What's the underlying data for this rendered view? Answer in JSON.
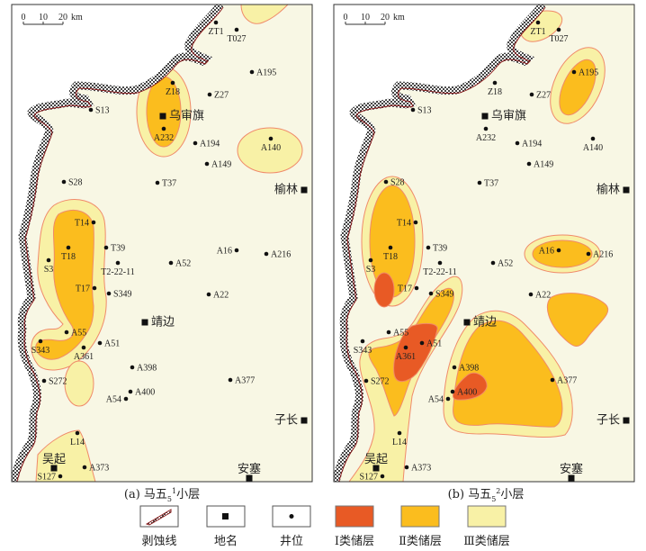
{
  "scale_bar": {
    "ticks": [
      "0",
      "10",
      "20"
    ],
    "unit": "km"
  },
  "colors": {
    "class_I": "#e85a25",
    "class_II": "#fbbd1e",
    "class_III": "#f8f1a6",
    "background": "#f8f7e4",
    "zone_outline": "#f08a6a",
    "erosion_line": "#8b1a1a"
  },
  "panels": [
    {
      "caption": {
        "prefix": "(a) ",
        "main": "马五",
        "sub": "5",
        "sup": "1",
        "suffix": "小层"
      }
    },
    {
      "caption": {
        "prefix": "(b) ",
        "main": "马五",
        "sub": "5",
        "sup": "2",
        "suffix": "小层"
      }
    }
  ],
  "places": [
    "乌审旗",
    "榆林",
    "靖边",
    "子长",
    "吴起",
    "安塞"
  ],
  "wells": [
    "ZT1",
    "T027",
    "A195",
    "Z18",
    "Z27",
    "S13",
    "A232",
    "A194",
    "A140",
    "A149",
    "S28",
    "T37",
    "T14",
    "T18",
    "T39",
    "S3",
    "T2-22-11",
    "A52",
    "A16",
    "A216",
    "T17",
    "S349",
    "A22",
    "A55",
    "A51",
    "S343",
    "A361",
    "A398",
    "A377",
    "S272",
    "A400",
    "A54",
    "L14",
    "A373",
    "S127"
  ],
  "legend": [
    {
      "label": "剥蚀线",
      "icon": "erosion-line-icon"
    },
    {
      "label": "地名",
      "icon": "square-icon"
    },
    {
      "label": "井位",
      "icon": "dot-icon"
    },
    {
      "label": "Ⅰ类储层",
      "icon": "class-i-swatch"
    },
    {
      "label": "Ⅱ类储层",
      "icon": "class-ii-swatch"
    },
    {
      "label": "Ⅲ类储层",
      "icon": "class-iii-swatch"
    }
  ]
}
